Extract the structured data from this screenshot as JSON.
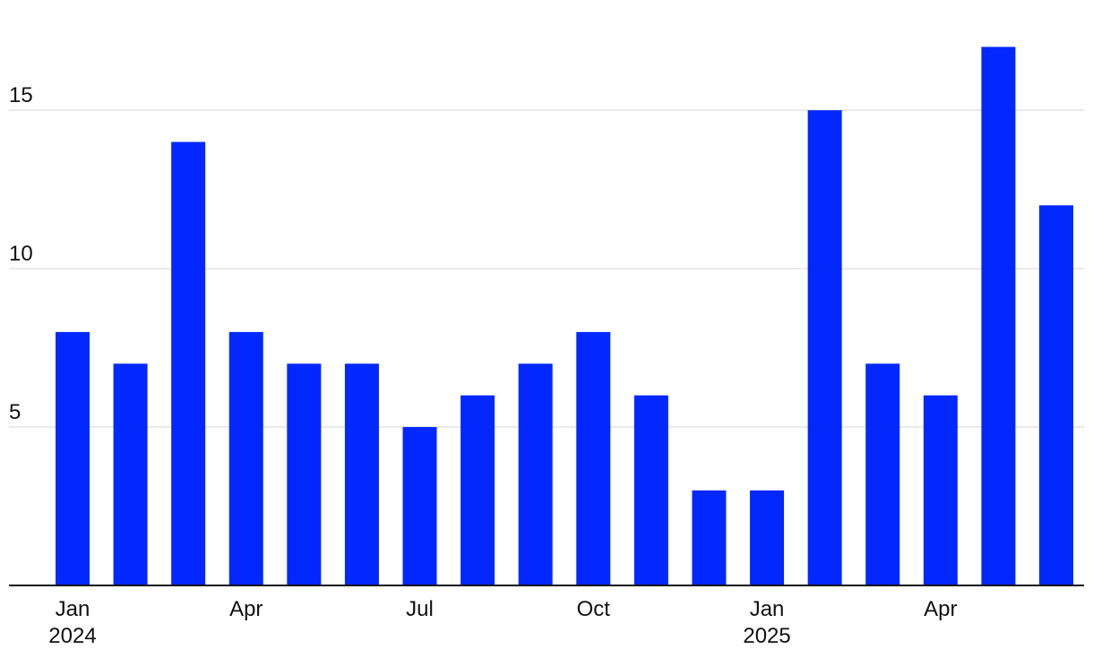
{
  "chart_data": {
    "type": "bar",
    "title": "",
    "xlabel": "",
    "ylabel": "",
    "x": [
      "2024-01",
      "2024-02",
      "2024-03",
      "2024-04",
      "2024-05",
      "2024-06",
      "2024-07",
      "2024-08",
      "2024-09",
      "2024-10",
      "2024-11",
      "2024-12",
      "2025-01",
      "2025-02",
      "2025-03",
      "2025-04",
      "2025-05",
      "2025-06"
    ],
    "values": [
      8,
      7,
      14,
      8,
      7,
      7,
      5,
      6,
      7,
      8,
      6,
      3,
      3,
      15,
      7,
      6,
      17,
      12
    ],
    "ylim": [
      0,
      18
    ],
    "yticks": [
      {
        "value": 5,
        "label": "5"
      },
      {
        "value": 10,
        "label": "10"
      },
      {
        "value": 15,
        "label": "15"
      }
    ],
    "xticks": [
      {
        "index": 0,
        "line1": "Jan",
        "line2": "2024"
      },
      {
        "index": 3,
        "line1": "Apr",
        "line2": ""
      },
      {
        "index": 6,
        "line1": "Jul",
        "line2": ""
      },
      {
        "index": 9,
        "line1": "Oct",
        "line2": ""
      },
      {
        "index": 12,
        "line1": "Jan",
        "line2": "2025"
      },
      {
        "index": 15,
        "line1": "Apr",
        "line2": ""
      }
    ],
    "grid": true,
    "colors": {
      "bar": "#0328fe",
      "grid": "#e2e2e2",
      "axis": "#111111"
    }
  }
}
